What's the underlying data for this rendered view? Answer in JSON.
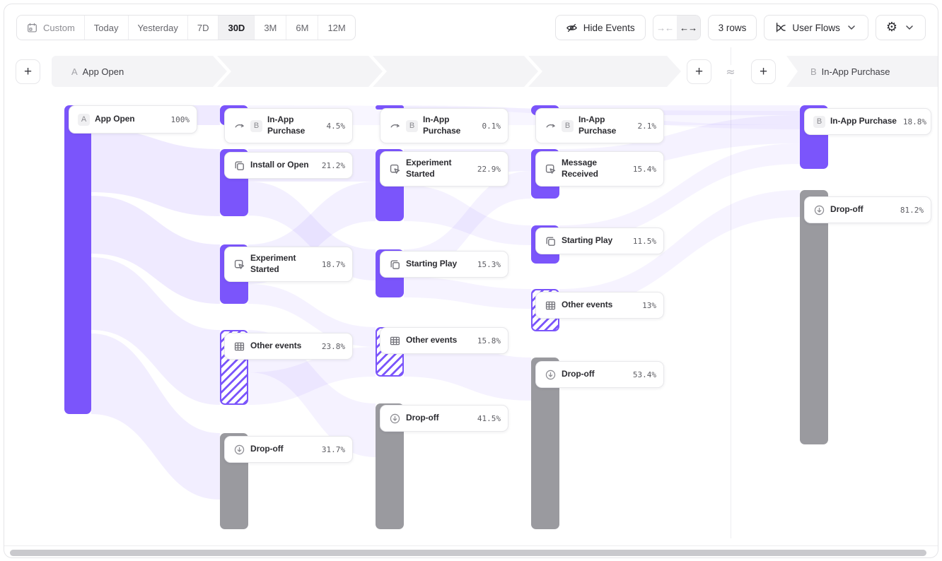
{
  "colors": {
    "accent": "#7b55fb",
    "dropoff": "#9a9a9f",
    "flow_light": "#efecfd"
  },
  "toolbar": {
    "date_ranges": {
      "custom": "Custom",
      "today": "Today",
      "yesterday": "Yesterday",
      "d7": "7D",
      "d30": "30D",
      "m3": "3M",
      "m6": "6M",
      "m12": "12M"
    },
    "selected_range": "30D",
    "hide_events": "Hide Events",
    "collapse_glyph": "→←",
    "expand_glyph": "←→",
    "rows": "3 rows",
    "view": "User Flows"
  },
  "header": {
    "start_badge": "A",
    "start_label": "App Open",
    "end_badge": "B",
    "end_label": "In-App Purchase",
    "approx": "≈",
    "plus": "+"
  },
  "columns": [
    {
      "nodes": [
        {
          "badge": "A",
          "label": "App Open",
          "value": "100%"
        }
      ]
    },
    {
      "nodes": [
        {
          "icon": "purchase-icon",
          "badge": "B",
          "label": "In-App Purchase",
          "value": "4.5%"
        },
        {
          "icon": "squares-icon",
          "label": "Install or Open",
          "value": "21.2%"
        },
        {
          "icon": "cursor-click-icon",
          "label": "Experiment Started",
          "value": "18.7%"
        },
        {
          "icon": "grid-icon",
          "label": "Other events",
          "value": "23.8%"
        },
        {
          "icon": "dropoff-icon",
          "label": "Drop-off",
          "value": "31.7%"
        }
      ]
    },
    {
      "nodes": [
        {
          "icon": "purchase-icon",
          "badge": "B",
          "label": "In-App Purchase",
          "value": "0.1%"
        },
        {
          "icon": "cursor-click-icon",
          "label": "Experiment Started",
          "value": "22.9%"
        },
        {
          "icon": "squares-icon",
          "label": "Starting Play",
          "value": "15.3%"
        },
        {
          "icon": "grid-icon",
          "label": "Other events",
          "value": "15.8%"
        },
        {
          "icon": "dropoff-icon",
          "label": "Drop-off",
          "value": "41.5%"
        }
      ]
    },
    {
      "nodes": [
        {
          "icon": "purchase-icon",
          "badge": "B",
          "label": "In-App Purchase",
          "value": "2.1%"
        },
        {
          "icon": "cursor-click-icon",
          "label": "Message Received",
          "value": "15.4%"
        },
        {
          "icon": "squares-icon",
          "label": "Starting Play",
          "value": "11.5%"
        },
        {
          "icon": "grid-icon",
          "label": "Other events",
          "value": "13%"
        },
        {
          "icon": "dropoff-icon",
          "label": "Drop-off",
          "value": "53.4%"
        }
      ]
    },
    {
      "nodes": [
        {
          "badge": "B",
          "label": "In-App Purchase",
          "value": "18.8%"
        },
        {
          "icon": "dropoff-icon",
          "label": "Drop-off",
          "value": "81.2%"
        }
      ]
    }
  ]
}
